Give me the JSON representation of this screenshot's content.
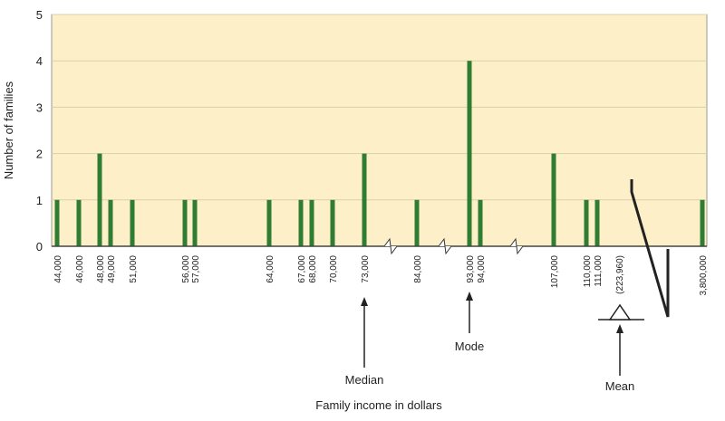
{
  "chart_data": {
    "type": "bar",
    "y_label": "Number of families",
    "x_label": "Family income in dollars",
    "categories": [
      "44,000",
      "46,000",
      "48,000",
      "49,000",
      "51,000",
      "56,000",
      "57,000",
      "64,000",
      "67,000",
      "68,000",
      "70,000",
      "73,000",
      "84,000",
      "93,000",
      "94,000",
      "107,000",
      "110,000",
      "111,000",
      "3,800,000"
    ],
    "values": [
      1,
      1,
      2,
      1,
      1,
      1,
      1,
      1,
      1,
      1,
      1,
      2,
      1,
      4,
      1,
      2,
      1,
      1,
      1
    ],
    "color": "#2e7d32",
    "ylim": [
      0,
      5
    ],
    "yticks": [
      0,
      1,
      2,
      3,
      4,
      5
    ],
    "grid": true,
    "annotations": {
      "median": "Median",
      "mode": "Mode",
      "mean": "Mean",
      "mean_value": "(223,960)"
    }
  }
}
